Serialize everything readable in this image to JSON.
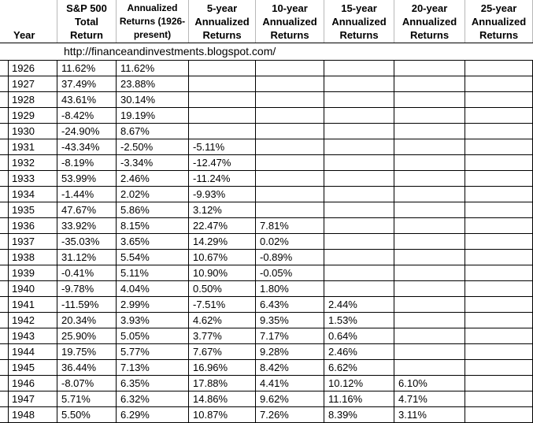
{
  "headers": [
    {
      "key": "year",
      "lines": [
        "Year"
      ]
    },
    {
      "key": "sp500",
      "lines": [
        "S&P 500",
        "Total",
        "Return"
      ]
    },
    {
      "key": "annualized",
      "lines": [
        "Annualized",
        "Returns (1926-",
        "present)"
      ]
    },
    {
      "key": "y5",
      "lines": [
        "5-year",
        "Annualized",
        "Returns"
      ]
    },
    {
      "key": "y10",
      "lines": [
        "10-year",
        "Annualized",
        "Returns"
      ]
    },
    {
      "key": "y15",
      "lines": [
        "15-year",
        "Annualized",
        "Returns"
      ]
    },
    {
      "key": "y20",
      "lines": [
        "20-year",
        "Annualized",
        "Returns"
      ]
    },
    {
      "key": "y25",
      "lines": [
        "25-year",
        "Annualized",
        "Returns"
      ]
    }
  ],
  "source_url": "http://financeandinvestments.blogspot.com/",
  "rows": [
    [
      "1926",
      "11.62%",
      "11.62%",
      "",
      "",
      "",
      "",
      ""
    ],
    [
      "1927",
      "37.49%",
      "23.88%",
      "",
      "",
      "",
      "",
      ""
    ],
    [
      "1928",
      "43.61%",
      "30.14%",
      "",
      "",
      "",
      "",
      ""
    ],
    [
      "1929",
      "-8.42%",
      "19.19%",
      "",
      "",
      "",
      "",
      ""
    ],
    [
      "1930",
      "-24.90%",
      "8.67%",
      "",
      "",
      "",
      "",
      ""
    ],
    [
      "1931",
      "-43.34%",
      "-2.50%",
      "-5.11%",
      "",
      "",
      "",
      ""
    ],
    [
      "1932",
      "-8.19%",
      "-3.34%",
      "-12.47%",
      "",
      "",
      "",
      ""
    ],
    [
      "1933",
      "53.99%",
      "2.46%",
      "-11.24%",
      "",
      "",
      "",
      ""
    ],
    [
      "1934",
      "-1.44%",
      "2.02%",
      "-9.93%",
      "",
      "",
      "",
      ""
    ],
    [
      "1935",
      "47.67%",
      "5.86%",
      "3.12%",
      "",
      "",
      "",
      ""
    ],
    [
      "1936",
      "33.92%",
      "8.15%",
      "22.47%",
      "7.81%",
      "",
      "",
      ""
    ],
    [
      "1937",
      "-35.03%",
      "3.65%",
      "14.29%",
      "0.02%",
      "",
      "",
      ""
    ],
    [
      "1938",
      "31.12%",
      "5.54%",
      "10.67%",
      "-0.89%",
      "",
      "",
      ""
    ],
    [
      "1939",
      "-0.41%",
      "5.11%",
      "10.90%",
      "-0.05%",
      "",
      "",
      ""
    ],
    [
      "1940",
      "-9.78%",
      "4.04%",
      "0.50%",
      "1.80%",
      "",
      "",
      ""
    ],
    [
      "1941",
      "-11.59%",
      "2.99%",
      "-7.51%",
      "6.43%",
      "2.44%",
      "",
      ""
    ],
    [
      "1942",
      "20.34%",
      "3.93%",
      "4.62%",
      "9.35%",
      "1.53%",
      "",
      ""
    ],
    [
      "1943",
      "25.90%",
      "5.05%",
      "3.77%",
      "7.17%",
      "0.64%",
      "",
      ""
    ],
    [
      "1944",
      "19.75%",
      "5.77%",
      "7.67%",
      "9.28%",
      "2.46%",
      "",
      ""
    ],
    [
      "1945",
      "36.44%",
      "7.13%",
      "16.96%",
      "8.42%",
      "6.62%",
      "",
      ""
    ],
    [
      "1946",
      "-8.07%",
      "6.35%",
      "17.88%",
      "4.41%",
      "10.12%",
      "6.10%",
      ""
    ],
    [
      "1947",
      "5.71%",
      "6.32%",
      "14.86%",
      "9.62%",
      "11.16%",
      "4.71%",
      ""
    ],
    [
      "1948",
      "5.50%",
      "6.29%",
      "10.87%",
      "7.26%",
      "8.39%",
      "3.11%",
      ""
    ]
  ]
}
